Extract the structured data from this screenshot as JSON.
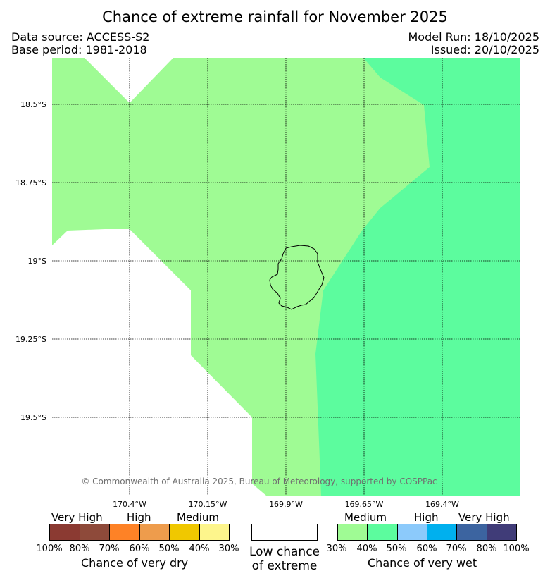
{
  "header": {
    "title": "Chance of extreme rainfall for November 2025",
    "data_source": "Data source: ACCESS-S2",
    "base_period": "Base period: 1981-2018",
    "model_run": "Model Run: 18/10/2025",
    "issued": "Issued: 20/10/2025"
  },
  "map": {
    "latitude_labels": [
      "18.5°S",
      "18.75°S",
      "19°S",
      "19.25°S",
      "19.5°S"
    ],
    "longitude_labels": [
      "170.4°W",
      "170.15°W",
      "169.9°W",
      "169.65°W",
      "169.4°W"
    ],
    "copyright": "© Commonwealth of Australia 2025, Bureau of Meteorology, supported by COSPPac",
    "colors": {
      "wet_medium": "#9ffb94",
      "wet_medium_high": "#5cfc9e",
      "background": "#ffffff"
    }
  },
  "legend": {
    "dry": {
      "levels": [
        "Very High",
        "High",
        "Medium"
      ],
      "ticks": [
        "100%",
        "80%",
        "70%",
        "60%",
        "50%",
        "40%",
        "30%"
      ],
      "caption": "Chance of very dry",
      "colors": [
        "#8b3a32",
        "#8e4a3a",
        "#fe8226",
        "#ee9c4c",
        "#f0c800",
        "#fdf58c"
      ]
    },
    "low": {
      "caption_line1": "Low chance",
      "caption_line2": "of extreme"
    },
    "wet": {
      "levels": [
        "Medium",
        "High",
        "Very High"
      ],
      "ticks": [
        "30%",
        "40%",
        "50%",
        "60%",
        "70%",
        "80%",
        "100%"
      ],
      "caption": "Chance of very wet",
      "colors": [
        "#9ffb94",
        "#5cfc9e",
        "#8ccafb",
        "#00b0ee",
        "#3c64a0",
        "#403c78"
      ]
    }
  }
}
